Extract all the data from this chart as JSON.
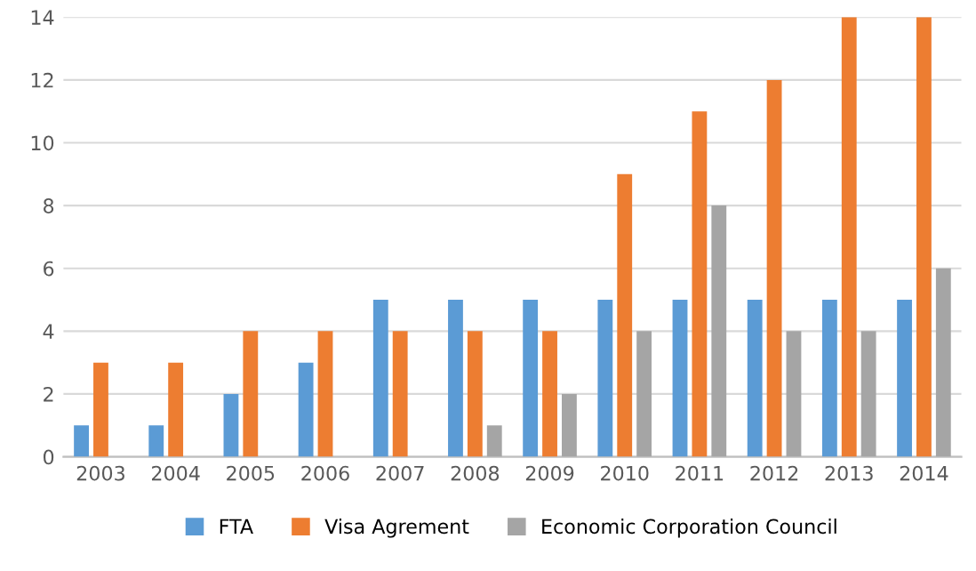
{
  "chart_data": {
    "type": "bar",
    "categories": [
      "2003",
      "2004",
      "2005",
      "2006",
      "2007",
      "2008",
      "2009",
      "2010",
      "2011",
      "2012",
      "2013",
      "2014"
    ],
    "series": [
      {
        "name": "FTA",
        "color": "#5b9bd5",
        "values": [
          1,
          1,
          2,
          3,
          5,
          5,
          5,
          5,
          5,
          5,
          5,
          5
        ]
      },
      {
        "name": "Visa Agrement",
        "color": "#ed7d31",
        "values": [
          3,
          3,
          4,
          4,
          4,
          4,
          4,
          9,
          11,
          12,
          14,
          14
        ]
      },
      {
        "name": "Economic Corporation Council",
        "color": "#a5a5a5",
        "values": [
          0,
          0,
          0,
          0,
          0,
          1,
          2,
          4,
          8,
          4,
          4,
          6
        ]
      }
    ],
    "ylim": [
      0,
      14
    ],
    "yticks": [
      0,
      2,
      4,
      6,
      8,
      10,
      12,
      14
    ],
    "grid": "y",
    "legend": "bottom"
  }
}
